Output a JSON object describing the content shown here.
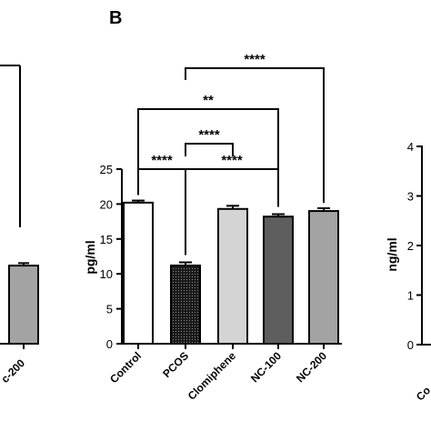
{
  "panel_label": "B",
  "chart_data": [
    {
      "type": "bar",
      "partial": "left panel (cropped)",
      "categories": [
        "NC-200"
      ],
      "cropped_category_text": "c-200",
      "values": [
        11.1
      ],
      "errors": [
        0.35
      ],
      "bar_colors": [
        "#a3a3a3"
      ]
    },
    {
      "type": "bar",
      "panel": "B",
      "categories": [
        "Control",
        "PCOS",
        "Clomiphene",
        "NC-100",
        "NC-200"
      ],
      "values": [
        20.2,
        11.2,
        19.3,
        18.2,
        19.0
      ],
      "errors": [
        0.3,
        0.45,
        0.45,
        0.35,
        0.4
      ],
      "bar_styles": [
        "white",
        "black-dotted",
        "light-gray",
        "dark-gray",
        "medium-gray"
      ],
      "bar_colors": [
        "#ffffff",
        "#1a1a1a",
        "#d4d4d4",
        "#5e5e5e",
        "#a3a3a3"
      ],
      "ylabel": "pg/ml",
      "ylim": [
        0,
        25
      ],
      "yticks": [
        0,
        5,
        10,
        15,
        20,
        25
      ],
      "grid": false,
      "significance": [
        {
          "from": "Control",
          "to": "PCOS",
          "label": "****"
        },
        {
          "from": "PCOS",
          "to": "Clomiphene",
          "label": "****"
        },
        {
          "from": "PCOS",
          "to": "NC-100",
          "label": "****"
        },
        {
          "from": "Control",
          "to": "NC-100",
          "label": "**"
        },
        {
          "from": "PCOS",
          "to": "NC-200",
          "label": "****"
        }
      ]
    },
    {
      "type": "bar",
      "partial": "right panel (cropped)",
      "ylabel": "ng/ml",
      "yticks": [
        0,
        1,
        2,
        3,
        4
      ],
      "ylim": [
        0,
        4
      ],
      "cropped_category_text": "Co"
    }
  ]
}
